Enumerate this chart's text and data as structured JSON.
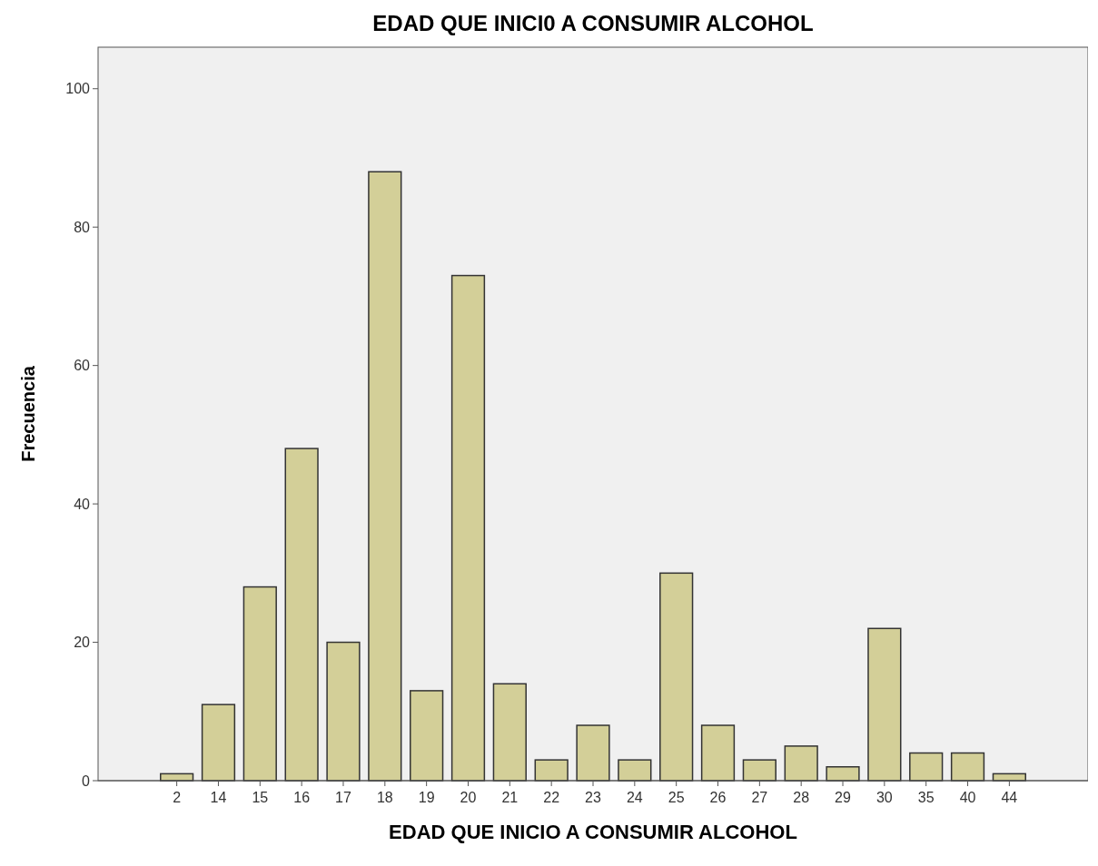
{
  "chart_data": {
    "type": "bar",
    "title": "EDAD QUE INICI0 A CONSUMIR ALCOHOL",
    "xlabel": "EDAD QUE INICIO A CONSUMIR ALCOHOL",
    "ylabel": "Frecuencia",
    "categories": [
      "2",
      "14",
      "15",
      "16",
      "17",
      "18",
      "19",
      "20",
      "21",
      "22",
      "23",
      "24",
      "25",
      "26",
      "27",
      "28",
      "29",
      "30",
      "35",
      "40",
      "44"
    ],
    "values": [
      1,
      11,
      28,
      48,
      20,
      88,
      13,
      73,
      14,
      3,
      8,
      3,
      30,
      8,
      3,
      5,
      2,
      22,
      4,
      4,
      1
    ],
    "color": "#d3cf98",
    "ylim": [
      0,
      106
    ],
    "yticks": [
      0,
      20,
      40,
      60,
      80,
      100
    ],
    "grid": false
  }
}
